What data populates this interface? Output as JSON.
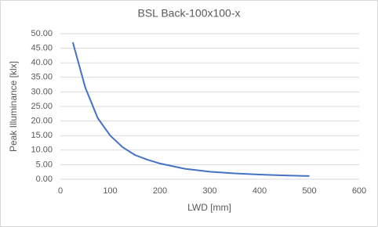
{
  "chart_data": {
    "type": "line",
    "title": "BSL Back-100x100-x",
    "x_label": "LWD [mm]",
    "y_label": "Peak Illuminance [klx]",
    "x": [
      25,
      50,
      75,
      100,
      125,
      150,
      175,
      200,
      250,
      300,
      350,
      400,
      450,
      500
    ],
    "series": [
      {
        "name": "BSL Back-100x100-x",
        "color": "#4472c4",
        "values": [
          47,
          31.5,
          21,
          15,
          11,
          8.3,
          6.7,
          5.4,
          3.6,
          2.6,
          2.0,
          1.6,
          1.3,
          1.1
        ]
      }
    ],
    "xlim": [
      0,
      600
    ],
    "xticks": [
      0,
      100,
      200,
      300,
      400,
      500,
      600
    ],
    "ylim": [
      0,
      50
    ],
    "yticks": [
      {
        "value": 0,
        "label": "0.00"
      },
      {
        "value": 5,
        "label": "5.00"
      },
      {
        "value": 10,
        "label": "10.00"
      },
      {
        "value": 15,
        "label": "15.00"
      },
      {
        "value": 20,
        "label": "20.00"
      },
      {
        "value": 25,
        "label": "25.00"
      },
      {
        "value": 30,
        "label": "30.00"
      },
      {
        "value": 35,
        "label": "35.00"
      },
      {
        "value": 40,
        "label": "40.00"
      },
      {
        "value": 45,
        "label": "45.00"
      },
      {
        "value": 50,
        "label": "50.00"
      }
    ],
    "grid": true
  }
}
